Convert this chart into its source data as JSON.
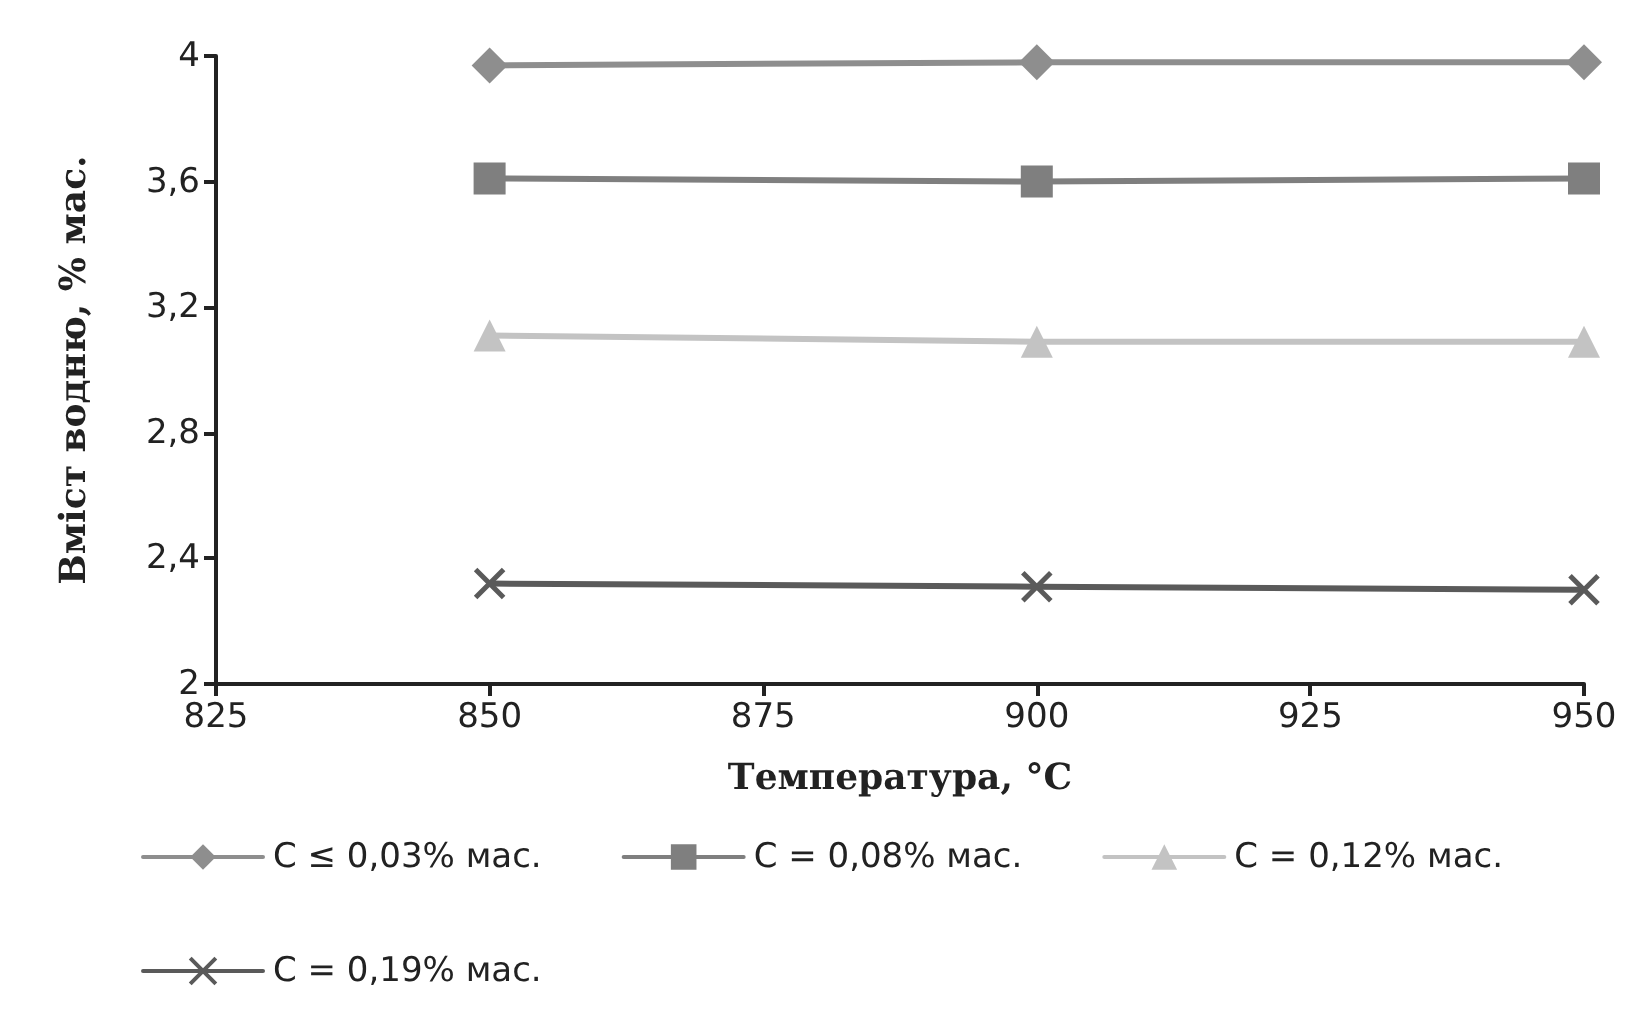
{
  "chart_data": {
    "type": "line",
    "xlabel": "Температура, °C",
    "ylabel": "Вміст водню, % мас.",
    "x": [
      850,
      900,
      950
    ],
    "xlim": [
      825,
      950
    ],
    "xticks": [
      825,
      850,
      875,
      900,
      925,
      950
    ],
    "ylim": [
      2,
      4
    ],
    "yticks": [
      {
        "value": 2,
        "label": "2"
      },
      {
        "value": 2.4,
        "label": "2,4"
      },
      {
        "value": 2.8,
        "label": "2,8"
      },
      {
        "value": 3.2,
        "label": "3,2"
      },
      {
        "value": 3.6,
        "label": "3,6"
      },
      {
        "value": 4,
        "label": "4"
      }
    ],
    "grid": false,
    "legend": "bottom",
    "series": [
      {
        "name": "C ≤ 0,03% мас.",
        "color": "#8e8e8e",
        "marker": "diamond",
        "values": [
          3.97,
          3.98,
          3.98
        ]
      },
      {
        "name": "C = 0,08% мас.",
        "color": "#7f7f7f",
        "marker": "square",
        "values": [
          3.61,
          3.6,
          3.61
        ]
      },
      {
        "name": "C = 0,12% мас.",
        "color": "#c3c3c3",
        "marker": "triangle",
        "values": [
          3.11,
          3.09,
          3.09
        ]
      },
      {
        "name": "C = 0,19% мас.",
        "color": "#5a5a5a",
        "marker": "cross",
        "values": [
          2.32,
          2.31,
          2.3
        ]
      }
    ]
  }
}
